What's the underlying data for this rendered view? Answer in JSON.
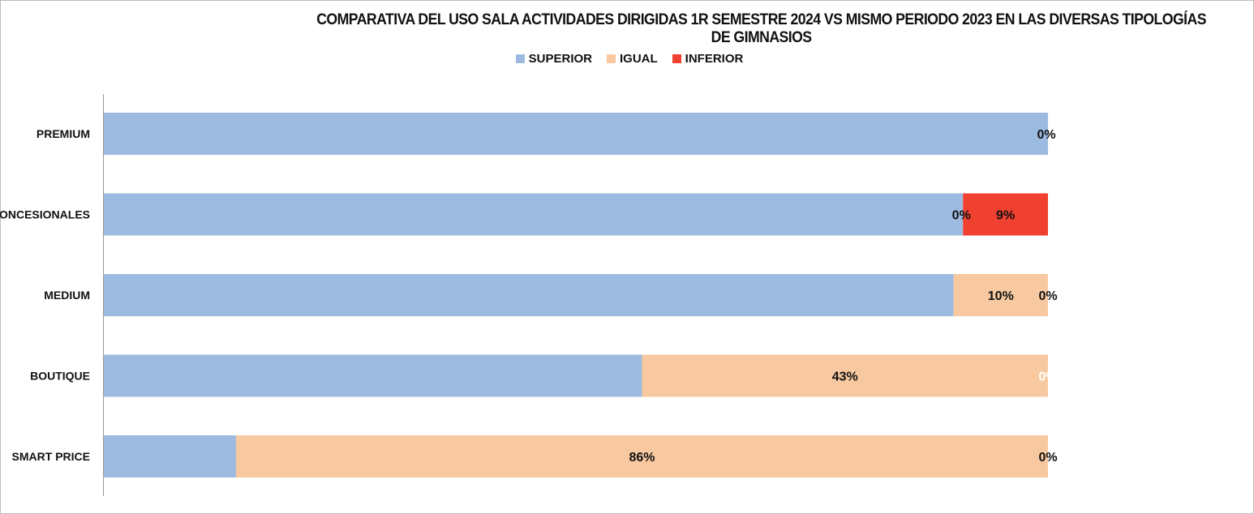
{
  "chart_data": {
    "type": "bar",
    "orientation": "horizontal",
    "stacked": "100%",
    "title": "COMPARATIVA DEL USO SALA ACTIVIDADES DIRIGIDAS 1R SEMESTRE 2024 VS MISMO PERIODO 2023 EN LAS DIVERSAS TIPOLOGÍAS DE GIMNASIOS",
    "legend_position": "top",
    "categories": [
      "PREMIUM",
      "CONCESIONALES",
      "MEDIUM",
      "BOUTIQUE",
      "SMART PRICE"
    ],
    "series": [
      {
        "name": "SUPERIOR",
        "color": "#9dbbe0",
        "values": [
          100,
          91,
          90,
          57,
          14
        ],
        "labels": [
          "",
          "",
          "",
          "",
          ""
        ],
        "label_color": "#111111"
      },
      {
        "name": "IGUAL",
        "color": "#f8c9a0",
        "values": [
          0,
          0,
          10,
          43,
          86
        ],
        "labels": [
          "0%",
          "0%",
          "10%",
          "43%",
          "86%"
        ],
        "label_color": "#111111"
      },
      {
        "name": "INFERIOR",
        "color": "#ef4030",
        "values": [
          0,
          9,
          0,
          0,
          0
        ],
        "labels": [
          "",
          "9%",
          "0%",
          "0%",
          "0%"
        ],
        "label_color": "#111111",
        "label_color_overrides": {
          "BOUTIQUE": "#ffffff"
        }
      }
    ],
    "xlim": [
      0,
      100
    ],
    "grid": false
  }
}
